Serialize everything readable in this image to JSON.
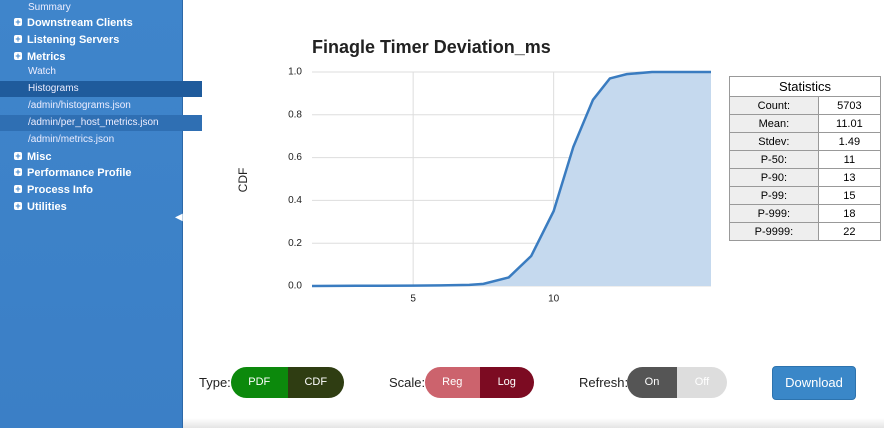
{
  "sidebar": [
    "Summary",
    "Downstream Clients",
    "Listening Servers",
    "Metrics",
    "Watch",
    "Histograms",
    "/admin/histograms.json",
    "/admin/per_host_metrics.json",
    "/admin/metrics.json",
    "Misc",
    "Performance Profile",
    "Process Info",
    "Utilities"
  ],
  "chart": {
    "type": "area",
    "title": "Finagle Timer Deviation_ms",
    "y_label": "CDF",
    "x": [
      1.4,
      3,
      5,
      6,
      7,
      7.5,
      8.4,
      9.2,
      10,
      10.7,
      11.4,
      12,
      12.6,
      13.5,
      15.6
    ],
    "values": [
      0,
      0.001,
      0.002,
      0.003,
      0.005,
      0.01,
      0.04,
      0.14,
      0.35,
      0.65,
      0.87,
      0.97,
      0.99,
      1.0,
      1.0
    ],
    "color": "#3a7cc0",
    "fill": "#c5d9ee",
    "xlim": [
      1.4,
      15.6
    ],
    "ylim": [
      0,
      1
    ],
    "xticks": [
      5,
      10
    ],
    "yticks": [
      {
        "value": 0,
        "label": "0.0"
      },
      {
        "value": 0.2,
        "label": "0.2"
      },
      {
        "value": 0.4,
        "label": "0.4"
      },
      {
        "value": 0.6,
        "label": "0.6"
      },
      {
        "value": 0.8,
        "label": "0.8"
      },
      {
        "value": 1,
        "label": "1.0"
      }
    ],
    "grid": true
  },
  "statistics": {
    "title": "Statistics",
    "rows": [
      [
        "Count:",
        5703
      ],
      [
        "Mean:",
        11.01
      ],
      [
        "Stdev:",
        1.49
      ],
      [
        "P-50:",
        11
      ],
      [
        "P-90:",
        13
      ],
      [
        "P-99:",
        15
      ],
      [
        "P-999:",
        18
      ],
      [
        "P-9999:",
        22
      ]
    ]
  },
  "controls": {
    "type": {
      "label": "Type:",
      "options": [
        "PDF",
        "CDF"
      ]
    },
    "scale": {
      "label": "Scale:",
      "options": [
        "Reg",
        "Log"
      ]
    },
    "refresh": {
      "label": "Refresh:",
      "options": [
        "On",
        "Off"
      ]
    },
    "download": "Download"
  }
}
